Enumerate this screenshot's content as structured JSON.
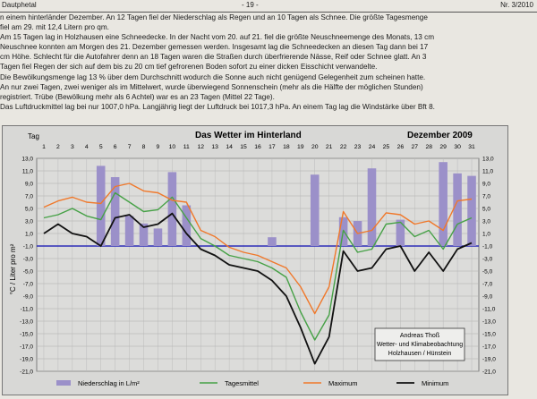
{
  "header": {
    "left": "Dautphetal",
    "center": "- 19 -",
    "right": "Nr. 3/2010"
  },
  "article": [
    "n einem hinterländer Dezember. An 12 Tagen fiel der Niederschlag als Regen und an 10 Tagen als Schnee. Die größte Tagesmenge",
    "fiel am 29. mit 12,4 Litern pro qm.",
    "Am 15 Tagen lag in Holzhausen eine Schneedecke. In der Nacht vom 20. auf 21. fiel die größte Neuschneemenge des Monats, 13 cm",
    "Neuschnee konnten am Morgen des 21. Dezember gemessen werden. Insgesamt lag die Schneedecken an diesen Tag dann bei 17",
    "cm Höhe. Schlecht für die Autofahrer denn an 18 Tagen waren die Straßen durch überfrierende Nässe, Reif oder Schnee glatt. An 3",
    "Tagen fiel Regen der sich auf dem bis zu 20 cm tief gefrorenen Boden sofort zu einer dicken Eisschicht verwandelte.",
    "Die Bewölkungsmenge lag 13 % über dem Durchschnitt wodurch die Sonne auch nicht genügend Gelegenheit zum scheinen hatte.",
    "An nur zwei Tagen, zwei weniger als im Mittelwert, wurde überwiegend Sonnenschein (mehr als die Hälfte der möglichen Stunden)",
    "registriert. Trübe (Bewölkung mehr als 6 Achtel) war es an 23 Tagen (Mittel 22 Tage).",
    "Das Luftdruckmittel lag bei nur 1007,0 hPa. Langjährig liegt der Luftdruck bei 1017,3 hPa. An einem Tag lag die Windstärke über Bft 8."
  ],
  "chart": {
    "title": "Das Wetter im Hinterland",
    "period": "Dezember 2009",
    "day_label": "Tag",
    "ylabel": "°C / Liter pro m²",
    "credit": [
      "Andreas Thoß",
      "Wetter- und Klimabeobachtung",
      "Holzhausen / Hünstein"
    ],
    "legend": [
      "Niederschlag in L/m²",
      "Tagesmittel",
      "Maximum",
      "Minimum"
    ]
  },
  "chart_data": {
    "type": "bar+line",
    "x": [
      1,
      2,
      3,
      4,
      5,
      6,
      7,
      8,
      9,
      10,
      11,
      12,
      13,
      14,
      15,
      16,
      17,
      18,
      19,
      20,
      21,
      22,
      23,
      24,
      25,
      26,
      27,
      28,
      29,
      30,
      31
    ],
    "ylim": [
      -21,
      13
    ],
    "yticks": [
      13,
      11,
      9,
      7,
      5,
      3,
      1,
      -1,
      -3,
      -5,
      -7,
      -9,
      -11,
      -13,
      -15,
      -17,
      -19,
      -21
    ],
    "ytick_labels": [
      "13,0",
      "11,0",
      "9,0",
      "7,0",
      "5,0",
      "3,0",
      "1,0",
      "-1,0",
      "-3,0",
      "-5,0",
      "-7,0",
      "-9,0",
      "-11,0",
      "-13,0",
      "-15,0",
      "-17,0",
      "-19,0",
      "-21,0"
    ],
    "colors": {
      "precip": "#9b90c9",
      "mean": "#46a146",
      "max": "#f0782a",
      "min": "#111111",
      "zero": "#2c2cb8"
    },
    "series": [
      {
        "name": "Niederschlag in L/m²",
        "type": "bar",
        "values": [
          0,
          0,
          0,
          0,
          11.8,
          10.0,
          3.8,
          2.6,
          1.8,
          10.8,
          5.5,
          0,
          0,
          0,
          0,
          0,
          0.4,
          0,
          0,
          10.4,
          0,
          3.6,
          3.0,
          11.4,
          0,
          3.2,
          0,
          0,
          12.4,
          10.6,
          10.2
        ]
      },
      {
        "name": "Tagesmittel",
        "type": "line",
        "values": [
          3.5,
          4.0,
          5.0,
          3.8,
          3.2,
          7.5,
          6.0,
          4.5,
          4.8,
          6.8,
          3.5,
          0.2,
          -1.0,
          -2.5,
          -3.0,
          -3.5,
          -4.5,
          -6.0,
          -11.5,
          -16.0,
          -12.0,
          1.5,
          -2.0,
          -1.5,
          2.5,
          2.8,
          0.5,
          1.5,
          -1.5,
          2.5,
          3.5
        ]
      },
      {
        "name": "Maximum",
        "type": "line",
        "values": [
          5.2,
          6.2,
          6.8,
          6.0,
          5.8,
          8.5,
          9.0,
          7.8,
          7.5,
          6.3,
          6.0,
          1.5,
          0.5,
          -1.2,
          -2.0,
          -2.5,
          -3.5,
          -4.5,
          -7.5,
          -11.8,
          -7.5,
          4.5,
          1.0,
          1.5,
          4.3,
          4.0,
          2.5,
          3.0,
          1.5,
          6.2,
          6.5
        ]
      },
      {
        "name": "Minimum",
        "type": "line",
        "values": [
          1.0,
          2.5,
          1.0,
          0.5,
          -1.0,
          3.5,
          4.0,
          2.0,
          2.5,
          4.2,
          1.0,
          -1.5,
          -2.5,
          -4.0,
          -4.5,
          -5.0,
          -6.5,
          -9.0,
          -14.0,
          -19.8,
          -15.5,
          -1.8,
          -5.0,
          -4.5,
          -1.5,
          -1.0,
          -5.0,
          -2.0,
          -5.0,
          -1.5,
          -0.5
        ]
      }
    ]
  }
}
